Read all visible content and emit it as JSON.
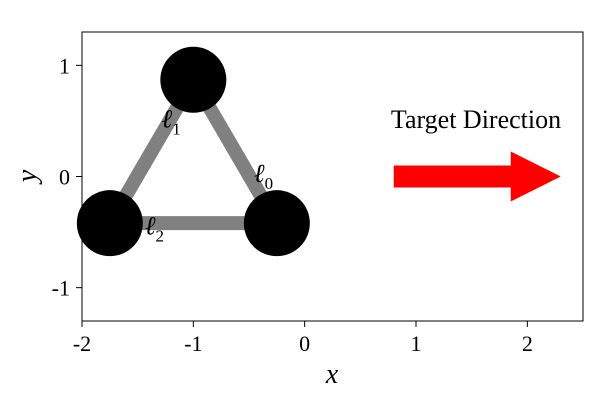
{
  "figure": {
    "axes": {
      "xlabel": "x",
      "ylabel": "y",
      "xlim": [
        -2.0,
        2.5
      ],
      "ylim": [
        -1.3,
        1.3
      ],
      "xticks": [
        {
          "value": -2,
          "label": "-2"
        },
        {
          "value": -1,
          "label": "-1"
        },
        {
          "value": 0,
          "label": "0"
        },
        {
          "value": 1,
          "label": "1"
        },
        {
          "value": 2,
          "label": "2"
        }
      ],
      "yticks": [
        {
          "value": -1,
          "label": "-1"
        },
        {
          "value": 0,
          "label": "0"
        },
        {
          "value": 1,
          "label": "1"
        }
      ],
      "grid": false
    },
    "link_color": "#808080",
    "node_color": "#000000",
    "nodes": [
      {
        "id": "top",
        "x": -1.0,
        "y": 0.87
      },
      {
        "id": "left",
        "x": -1.75,
        "y": -0.42
      },
      {
        "id": "right",
        "x": -0.25,
        "y": -0.42
      }
    ],
    "links": [
      {
        "id": "link-0",
        "from": "top",
        "to": "right",
        "label": "ℓ",
        "subscript": "0",
        "label_x": -0.37,
        "label_y": -0.05
      },
      {
        "id": "link-1",
        "from": "top",
        "to": "left",
        "label": "ℓ",
        "subscript": "1",
        "label_x": -1.2,
        "label_y": 0.44
      },
      {
        "id": "link-2",
        "from": "left",
        "to": "right",
        "label": "ℓ",
        "subscript": "2",
        "label_x": -1.35,
        "label_y": -0.52
      }
    ],
    "target": {
      "label": "Target Direction",
      "color": "#ff0000",
      "arrow_from": [
        0.8,
        0.0
      ],
      "arrow_to": [
        2.3,
        0.0
      ]
    }
  }
}
